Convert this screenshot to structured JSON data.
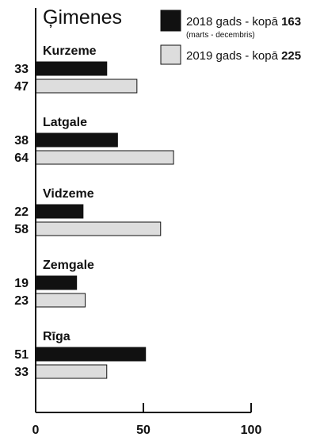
{
  "chart_data": {
    "type": "bar",
    "orientation": "horizontal",
    "title": "Ģimenes",
    "categories": [
      "Kurzeme",
      "Latgale",
      "Vidzeme",
      "Zemgale",
      "Rīga"
    ],
    "series": [
      {
        "legend_prefix": "2018 gads - kopā ",
        "total": "163",
        "note": "(marts - decembris)",
        "color": "#111111",
        "values": [
          33,
          38,
          22,
          19,
          51
        ]
      },
      {
        "legend_prefix": "2019 gads - kopā ",
        "total": "225",
        "note": "",
        "color": "#dddddd",
        "values": [
          47,
          64,
          58,
          23,
          33
        ]
      }
    ],
    "x_ticks": [
      "0",
      "50",
      "100"
    ],
    "xlim": [
      0,
      100
    ],
    "grid": false,
    "legend_position": "top-right"
  }
}
